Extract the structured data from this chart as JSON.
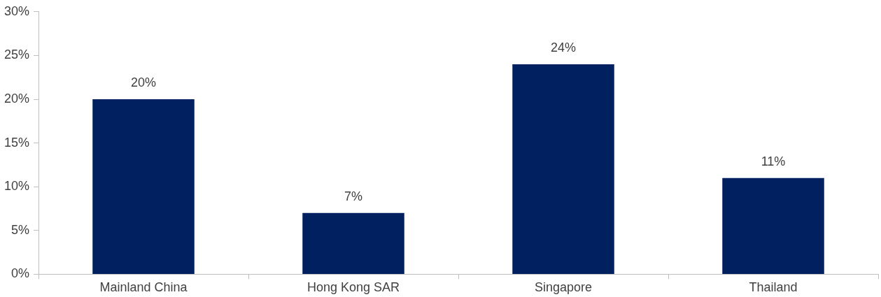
{
  "chart_data": {
    "type": "bar",
    "categories": [
      "Mainland China",
      "Hong Kong SAR",
      "Singapore",
      "Thailand"
    ],
    "values": [
      20,
      7,
      24,
      11
    ],
    "value_labels": [
      "20%",
      "7%",
      "24%",
      "11%"
    ],
    "color": "#002060",
    "ylim": [
      0,
      30
    ],
    "yticks": [
      {
        "value": 0,
        "label": "0%"
      },
      {
        "value": 5,
        "label": "5%"
      },
      {
        "value": 10,
        "label": "10%"
      },
      {
        "value": 15,
        "label": "15%"
      },
      {
        "value": 20,
        "label": "20%"
      },
      {
        "value": 25,
        "label": "25%"
      },
      {
        "value": 30,
        "label": "30%"
      }
    ],
    "grid": false,
    "legend": false
  }
}
